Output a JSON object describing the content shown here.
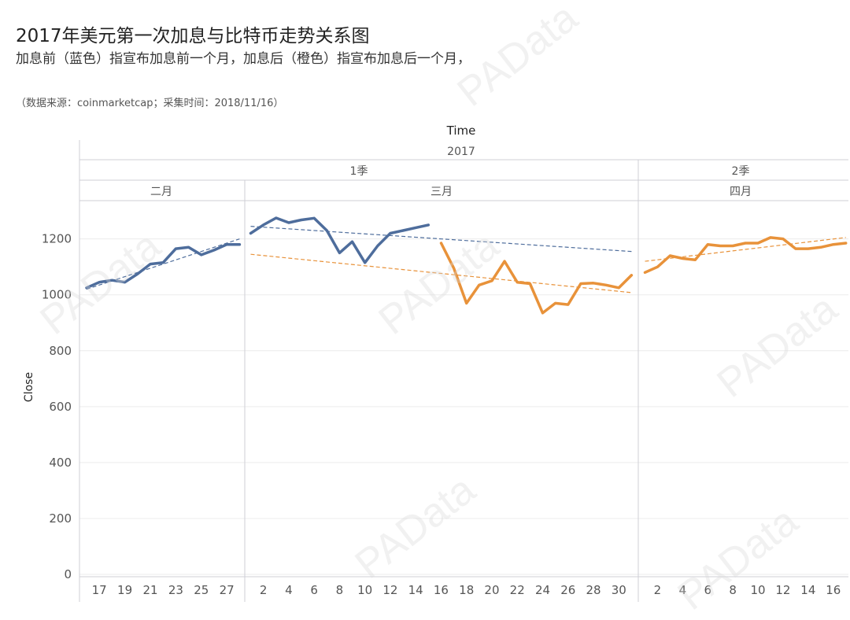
{
  "header": {
    "title": "2017年美元第一次加息与比特币走势关系图",
    "subtitle": "加息前（蓝色）指宣布加息前一个月，加息后（橙色）指宣布加息后一个月，",
    "source": "（数据来源：coinmarketcap；采集时间：2018/11/16）"
  },
  "watermark": {
    "text": "PAData"
  },
  "colors": {
    "before": "#4e6d9c",
    "after": "#e8923a",
    "grid": "#ececec",
    "divider": "#cfcfd6"
  },
  "chart_data": {
    "type": "line",
    "xlabel": "Time",
    "ylabel": "Close",
    "ylim": [
      0,
      1300
    ],
    "yticks": [
      0,
      200,
      400,
      600,
      800,
      1000,
      1200
    ],
    "header_levels": {
      "year": "2017",
      "quarters": [
        {
          "label": "1季"
        },
        {
          "label": "2季"
        }
      ],
      "months": [
        {
          "label": "二月"
        },
        {
          "label": "三月"
        },
        {
          "label": "四月"
        }
      ]
    },
    "xticks": {
      "二月": [
        "17",
        "19",
        "21",
        "23",
        "25",
        "27"
      ],
      "三月": [
        "2",
        "4",
        "6",
        "8",
        "10",
        "12",
        "14",
        "16",
        "18",
        "20",
        "22",
        "24",
        "26",
        "28",
        "30"
      ],
      "四月": [
        "2",
        "4",
        "6",
        "8",
        "10",
        "12",
        "14",
        "16"
      ]
    },
    "series": [
      {
        "name": "加息前",
        "color": "#4e6d9c",
        "segments": [
          {
            "month": "二月",
            "days": [
              16,
              17,
              18,
              19,
              20,
              21,
              22,
              23,
              24,
              25,
              26,
              27,
              28
            ],
            "values": [
              1025,
              1045,
              1052,
              1045,
              1075,
              1110,
              1115,
              1165,
              1170,
              1143,
              1160,
              1180,
              1180
            ]
          },
          {
            "month": "三月",
            "days": [
              1,
              2,
              3,
              4,
              5,
              6,
              7,
              8,
              9,
              10,
              11,
              12,
              13,
              14,
              15
            ],
            "values": [
              1220,
              1250,
              1275,
              1258,
              1268,
              1274,
              1230,
              1150,
              1190,
              1115,
              1175,
              1220,
              1230,
              1240,
              1250
            ]
          }
        ],
        "trend": [
          {
            "month": "二月",
            "from": [
              16,
              1020
            ],
            "to": [
              28,
              1200
            ]
          },
          {
            "month": "三月",
            "from": [
              1,
              1245
            ],
            "to": [
              31,
              1155
            ]
          }
        ]
      },
      {
        "name": "加息后",
        "color": "#e8923a",
        "segments": [
          {
            "month": "三月",
            "days": [
              16,
              17,
              18,
              19,
              20,
              21,
              22,
              23,
              24,
              25,
              26,
              27,
              28,
              29,
              30,
              31
            ],
            "values": [
              1185,
              1095,
              970,
              1035,
              1050,
              1120,
              1045,
              1040,
              935,
              970,
              965,
              1040,
              1042,
              1035,
              1025,
              1070
            ]
          },
          {
            "month": "四月",
            "days": [
              1,
              2,
              3,
              4,
              5,
              6,
              7,
              8,
              9,
              10,
              11,
              12,
              13,
              14,
              15,
              16,
              17
            ],
            "values": [
              1080,
              1100,
              1140,
              1130,
              1125,
              1180,
              1175,
              1175,
              1185,
              1185,
              1205,
              1200,
              1165,
              1165,
              1170,
              1180,
              1185
            ]
          }
        ],
        "trend": [
          {
            "month": "三月",
            "from": [
              1,
              1145
            ],
            "to": [
              31,
              1008
            ]
          },
          {
            "month": "四月",
            "from": [
              1,
              1120
            ],
            "to": [
              17,
              1205
            ]
          }
        ]
      }
    ]
  }
}
